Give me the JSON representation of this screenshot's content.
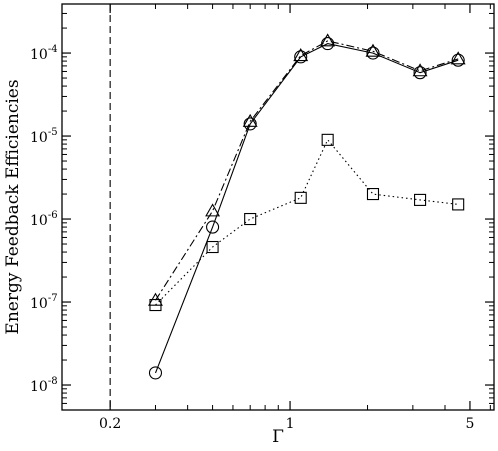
{
  "chart_data": {
    "type": "line",
    "title": "",
    "xlabel": "Γ",
    "ylabel": "Energy Feedback Efficiencies",
    "xscale": "log",
    "yscale": "log",
    "xlim": [
      0.13,
      6.2
    ],
    "ylim": [
      5e-09,
      0.00039
    ],
    "xticks": [
      {
        "value": 0.2,
        "label": "0.2"
      },
      {
        "value": 1,
        "label": "1"
      },
      {
        "value": 5,
        "label": "5"
      }
    ],
    "yticks": [
      {
        "value": 1e-08,
        "base": "10",
        "exp": "-8"
      },
      {
        "value": 1e-07,
        "base": "10",
        "exp": "-7"
      },
      {
        "value": 1e-06,
        "base": "10",
        "exp": "-6"
      },
      {
        "value": 1e-05,
        "base": "10",
        "exp": "-5"
      },
      {
        "value": 0.0001,
        "base": "10",
        "exp": "-4"
      }
    ],
    "vertical_line": {
      "x": 0.2,
      "style": "dashed"
    },
    "grid": false,
    "legend": "none",
    "series": [
      {
        "marker": "circle",
        "line": "solid",
        "x": [
          0.3,
          0.5,
          0.7,
          1.1,
          1.4,
          2.1,
          3.2,
          4.5
        ],
        "y": [
          1.4e-08,
          8e-07,
          1.4e-05,
          9e-05,
          0.00013,
          0.0001,
          5.8e-05,
          8.2e-05
        ]
      },
      {
        "marker": "triangle",
        "line": "dash-dot",
        "x": [
          0.3,
          0.5,
          0.7,
          1.1,
          1.4,
          2.1,
          3.2,
          4.5
        ],
        "y": [
          1.05e-07,
          1.25e-06,
          1.5e-05,
          9.3e-05,
          0.00014,
          0.000105,
          6.1e-05,
          8.5e-05
        ]
      },
      {
        "marker": "square",
        "line": "dotted",
        "x": [
          0.3,
          0.5,
          0.7,
          1.1,
          1.4,
          2.1,
          3.2,
          4.5
        ],
        "y": [
          9.2e-08,
          4.6e-07,
          1e-06,
          1.8e-06,
          9e-06,
          2e-06,
          1.7e-06,
          1.5e-06
        ]
      }
    ]
  }
}
